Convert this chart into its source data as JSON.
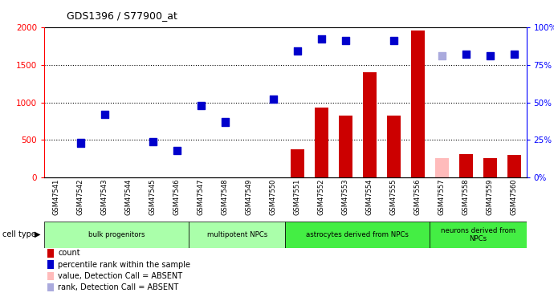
{
  "title": "GDS1396 / S77900_at",
  "samples": [
    "GSM47541",
    "GSM47542",
    "GSM47543",
    "GSM47544",
    "GSM47545",
    "GSM47546",
    "GSM47547",
    "GSM47548",
    "GSM47549",
    "GSM47550",
    "GSM47551",
    "GSM47552",
    "GSM47553",
    "GSM47554",
    "GSM47555",
    "GSM47556",
    "GSM47557",
    "GSM47558",
    "GSM47559",
    "GSM47560"
  ],
  "count_values": [
    8,
    8,
    8,
    8,
    8,
    8,
    8,
    8,
    8,
    8,
    380,
    930,
    820,
    1400,
    820,
    1960,
    260,
    310,
    260,
    300
  ],
  "count_absent": [
    false,
    false,
    false,
    false,
    false,
    false,
    false,
    false,
    false,
    false,
    false,
    false,
    false,
    false,
    false,
    false,
    true,
    false,
    false,
    false
  ],
  "rank_values": [
    null,
    460,
    840,
    null,
    480,
    360,
    960,
    740,
    null,
    1040,
    1680,
    1840,
    1820,
    null,
    1820,
    null,
    1620,
    1640,
    1620,
    1640
  ],
  "rank_absent": [
    false,
    false,
    false,
    false,
    false,
    false,
    false,
    false,
    false,
    false,
    false,
    false,
    false,
    false,
    false,
    false,
    true,
    false,
    false,
    false
  ],
  "ylim_left": [
    0,
    2000
  ],
  "ylim_right": [
    0,
    100
  ],
  "yticks_left": [
    0,
    500,
    1000,
    1500,
    2000
  ],
  "yticks_right": [
    0,
    25,
    50,
    75,
    100
  ],
  "grid_values": [
    500,
    1000,
    1500
  ],
  "cell_groups": [
    {
      "label": "bulk progenitors",
      "start": 0,
      "end": 5,
      "color": "#aaffaa"
    },
    {
      "label": "multipotent NPCs",
      "start": 6,
      "end": 9,
      "color": "#aaffaa"
    },
    {
      "label": "astrocytes derived from NPCs",
      "start": 10,
      "end": 15,
      "color": "#44ee44"
    },
    {
      "label": "neurons derived from\nNPCs",
      "start": 16,
      "end": 19,
      "color": "#44ee44"
    }
  ],
  "bar_color_present": "#cc0000",
  "bar_color_absent": "#ffbbbb",
  "rank_color_present": "#0000cc",
  "rank_color_absent": "#aaaadd",
  "bar_width": 0.55,
  "rank_marker_size": 45
}
